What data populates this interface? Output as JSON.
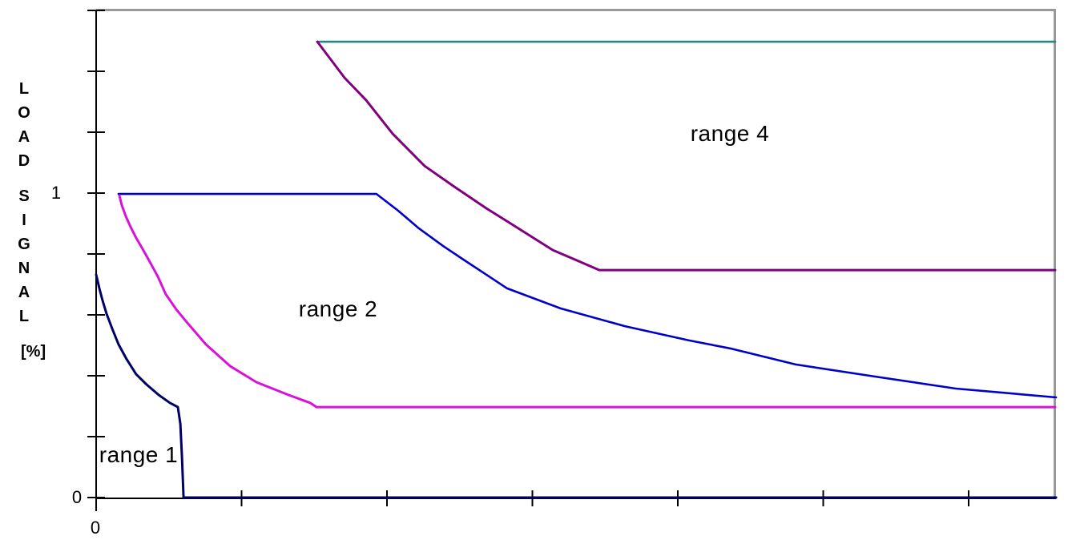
{
  "chart_data": {
    "type": "line",
    "title": "",
    "ylabel_stacked": [
      "L",
      "O",
      "A",
      "D",
      " ",
      "S",
      "I",
      "G",
      "N",
      "A",
      "L",
      " ",
      "[%]"
    ],
    "ylabel_text": "LOAD SIGNAL [%]",
    "xlabel": "",
    "x_axis": {
      "min": 0,
      "max": 6.6,
      "tick_step": 1,
      "labeled_ticks": [
        {
          "value": 0,
          "label": "0"
        }
      ]
    },
    "y_axis": {
      "min": 0,
      "max": 1.6,
      "tick_step": 0.2,
      "labeled_ticks": [
        {
          "value": 1,
          "label": "1"
        },
        {
          "value": 0,
          "label": "0"
        }
      ]
    },
    "grid": false,
    "legend": "none",
    "frame": {
      "top_border_color": "#999999",
      "right_border_color": "#999999",
      "axis_color": "#000000"
    },
    "series": [
      {
        "name": "upper-limit-line",
        "color": "#268585",
        "width": 2.6,
        "points": [
          [
            1.521,
            1.497
          ],
          [
            6.595,
            1.497
          ]
        ]
      },
      {
        "name": "range-4-boundary",
        "color": "#800080",
        "width": 3,
        "points": [
          [
            1.521,
            1.497
          ],
          [
            1.708,
            1.379
          ],
          [
            1.857,
            1.305
          ],
          [
            2.039,
            1.195
          ],
          [
            2.259,
            1.089
          ],
          [
            2.463,
            1.021
          ],
          [
            2.683,
            0.95
          ],
          [
            2.904,
            0.884
          ],
          [
            3.14,
            0.813
          ],
          [
            3.306,
            0.779
          ],
          [
            3.46,
            0.747
          ],
          [
            6.595,
            0.747
          ]
        ]
      },
      {
        "name": "range-3-boundary",
        "color": "#0000CC",
        "width": 2.6,
        "points": [
          [
            0.154,
            0.997
          ],
          [
            1.928,
            0.997
          ],
          [
            2.077,
            0.942
          ],
          [
            2.22,
            0.884
          ],
          [
            2.386,
            0.826
          ],
          [
            2.534,
            0.779
          ],
          [
            2.683,
            0.732
          ],
          [
            2.826,
            0.687
          ],
          [
            3.195,
            0.621
          ],
          [
            3.636,
            0.563
          ],
          [
            4.077,
            0.516
          ],
          [
            4.369,
            0.489
          ],
          [
            4.81,
            0.437
          ],
          [
            5.361,
            0.397
          ],
          [
            5.912,
            0.358
          ],
          [
            6.601,
            0.329
          ]
        ]
      },
      {
        "name": "range-2-boundary",
        "color": "#D911D9",
        "width": 3,
        "points": [
          [
            0.16,
            0.992
          ],
          [
            0.176,
            0.961
          ],
          [
            0.204,
            0.924
          ],
          [
            0.237,
            0.889
          ],
          [
            0.275,
            0.853
          ],
          [
            0.32,
            0.816
          ],
          [
            0.369,
            0.774
          ],
          [
            0.424,
            0.726
          ],
          [
            0.479,
            0.668
          ],
          [
            0.551,
            0.618
          ],
          [
            0.623,
            0.576
          ],
          [
            0.755,
            0.503
          ],
          [
            0.92,
            0.432
          ],
          [
            1.102,
            0.379
          ],
          [
            1.322,
            0.337
          ],
          [
            1.471,
            0.311
          ],
          [
            1.515,
            0.297
          ],
          [
            6.595,
            0.297
          ]
        ]
      },
      {
        "name": "range-1-boundary",
        "color": "#000066",
        "width": 3,
        "points": [
          [
            0.0,
            0.732
          ],
          [
            0.022,
            0.687
          ],
          [
            0.044,
            0.647
          ],
          [
            0.072,
            0.603
          ],
          [
            0.11,
            0.555
          ],
          [
            0.154,
            0.503
          ],
          [
            0.209,
            0.455
          ],
          [
            0.275,
            0.405
          ],
          [
            0.347,
            0.371
          ],
          [
            0.43,
            0.337
          ],
          [
            0.507,
            0.311
          ],
          [
            0.562,
            0.297
          ],
          [
            0.579,
            0.242
          ],
          [
            0.59,
            0.134
          ],
          [
            0.601,
            0.0
          ],
          [
            6.601,
            0.0
          ]
        ]
      }
    ],
    "annotations": [
      {
        "id": "range-1",
        "label": "range 1",
        "x": 0.292,
        "y": 0.139
      },
      {
        "id": "range-2",
        "label": "range 2",
        "x": 1.664,
        "y": 0.618
      },
      {
        "id": "range-4",
        "label": "range 4",
        "x": 4.358,
        "y": 1.195
      }
    ]
  }
}
